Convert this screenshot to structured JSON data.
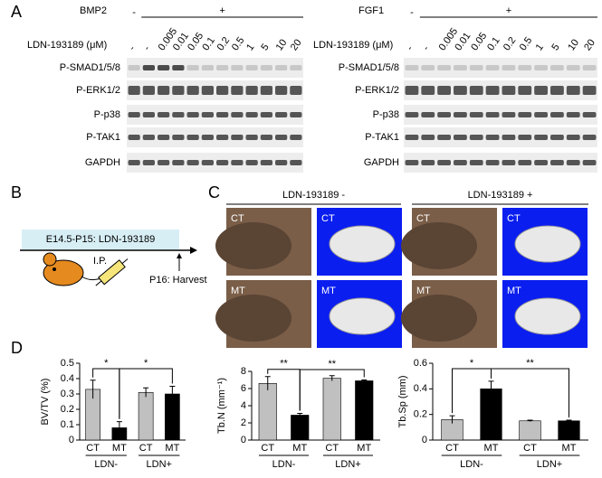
{
  "panel_a": {
    "label": "A",
    "blots": [
      {
        "treatment": "BMP2",
        "minus": "-",
        "plus": "+",
        "dose_label": "LDN-193189 (μM)",
        "doses": [
          "-",
          "-",
          "0.005",
          "0.01",
          "0.05",
          "0.1",
          "0.2",
          "0.5",
          "1",
          "5",
          "10",
          "20"
        ],
        "rows": [
          "P-SMAD1/5/8",
          "P-ERK1/2",
          "P-p38",
          "P-TAK1",
          "GAPDH"
        ]
      },
      {
        "treatment": "FGF1",
        "minus": "-",
        "plus": "+",
        "dose_label": "LDN-193189 (μM)",
        "doses": [
          "-",
          "-",
          "0.005",
          "0.01",
          "0.05",
          "0.1",
          "0.2",
          "0.5",
          "1",
          "5",
          "10",
          "20"
        ],
        "rows": [
          "P-SMAD1/5/8",
          "P-ERK1/2",
          "P-p38",
          "P-TAK1",
          "GAPDH"
        ]
      }
    ]
  },
  "panel_b": {
    "label": "B",
    "treatment": "E14.5-P15: LDN-193189",
    "route": "I.P.",
    "harvest": "P16: Harvest"
  },
  "panel_c": {
    "label": "C",
    "headers": [
      "LDN-193189 -",
      "LDN-193189 +"
    ],
    "photos": [
      [
        "CT",
        "CT",
        "CT",
        "CT"
      ],
      [
        "MT",
        "MT",
        "MT",
        "MT"
      ]
    ]
  },
  "panel_d": {
    "label": "D"
  },
  "chart_data": [
    {
      "type": "bar",
      "ylabel": "BV/TV (%)",
      "categories": [
        "CT",
        "MT",
        "CT",
        "MT"
      ],
      "groups": [
        "LDN-",
        "LDN+"
      ],
      "values": [
        0.33,
        0.08,
        0.31,
        0.3
      ],
      "errors": [
        0.06,
        0.04,
        0.03,
        0.05
      ],
      "colors": [
        "#c0c0c0",
        "#000000",
        "#c0c0c0",
        "#000000"
      ],
      "ylim": [
        0,
        0.5
      ],
      "yticks": [
        0,
        0.1,
        0.2,
        0.3,
        0.4,
        0.5
      ],
      "annotations": [
        "*",
        "*"
      ]
    },
    {
      "type": "bar",
      "ylabel": "Tb.N (mm⁻¹)",
      "categories": [
        "CT",
        "MT",
        "CT",
        "MT"
      ],
      "groups": [
        "LDN-",
        "LDN+"
      ],
      "values": [
        6.6,
        2.9,
        7.2,
        6.9
      ],
      "errors": [
        0.8,
        0.2,
        0.3,
        0.1
      ],
      "colors": [
        "#c0c0c0",
        "#000000",
        "#c0c0c0",
        "#000000"
      ],
      "ylim": [
        0,
        8
      ],
      "yticks": [
        0,
        2,
        4,
        6,
        8
      ],
      "annotations": [
        "**",
        "**"
      ]
    },
    {
      "type": "bar",
      "ylabel": "Tb.Sp (mm)",
      "categories": [
        "CT",
        "MT",
        "CT",
        "MT"
      ],
      "groups": [
        "LDN-",
        "LDN+"
      ],
      "values": [
        0.16,
        0.4,
        0.15,
        0.15
      ],
      "errors": [
        0.03,
        0.06,
        0.005,
        0.005
      ],
      "colors": [
        "#c0c0c0",
        "#000000",
        "#c0c0c0",
        "#000000"
      ],
      "ylim": [
        0,
        0.6
      ],
      "yticks": [
        0,
        0.2,
        0.4,
        0.6
      ],
      "annotations": [
        "*",
        "**"
      ]
    }
  ]
}
